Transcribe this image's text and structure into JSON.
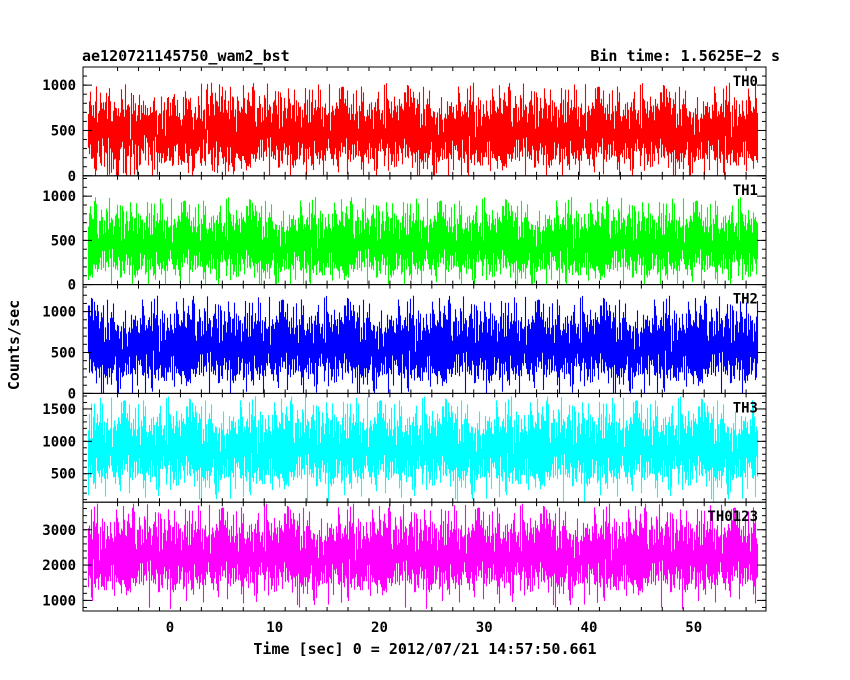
{
  "chart_data": {
    "type": "line",
    "title_left": "ae120721145750_wam2_bst",
    "title_right": "Bin time: 1.5625E−2 s",
    "xlabel": "Time [sec] 0 = 2012/07/21 14:57:50.661",
    "ylabel": "Counts/sec",
    "xlim": [
      -8.3,
      56.9
    ],
    "x_ticks": [
      0,
      10,
      20,
      30,
      40,
      50
    ],
    "x_tick_labels": [
      "0",
      "10",
      "20",
      "30",
      "40",
      "50"
    ],
    "data_x_range": [
      -7.8,
      56.0
    ],
    "bin_time": 0.015625,
    "panels": [
      {
        "name": "TH0",
        "color": "#ff0000",
        "ylim": [
          0,
          1200
        ],
        "y_ticks": [
          0,
          500,
          1000
        ],
        "y_tick_labels": [
          "0",
          "500",
          "1000"
        ],
        "y_minor_step": 100,
        "mean": 470,
        "spread": 175,
        "max": 1200,
        "min": 0
      },
      {
        "name": "TH1",
        "color": "#00ff00",
        "ylim": [
          0,
          1230
        ],
        "y_ticks": [
          0,
          500,
          1000
        ],
        "y_tick_labels": [
          "0",
          "500",
          "1000"
        ],
        "y_minor_step": 100,
        "mean": 450,
        "spread": 170,
        "max": 1150,
        "min": 0
      },
      {
        "name": "TH2",
        "color": "#0000ff",
        "ylim": [
          0,
          1330
        ],
        "y_ticks": [
          0,
          500,
          1000
        ],
        "y_tick_labels": [
          "0",
          "500",
          "1000"
        ],
        "y_minor_step": 100,
        "mean": 560,
        "spread": 200,
        "max": 1330,
        "min": 0
      },
      {
        "name": "TH3",
        "color": "#00ffff",
        "ylim": [
          60,
          1740
        ],
        "y_ticks": [
          500,
          1000,
          1500
        ],
        "y_tick_labels": [
          "500",
          "1000",
          "1500"
        ],
        "y_minor_step": 100,
        "mean": 870,
        "spread": 260,
        "max": 1740,
        "min": 60
      },
      {
        "name": "TH0123",
        "color": "#ff00ff",
        "ylim": [
          700,
          3780
        ],
        "y_ticks": [
          1000,
          2000,
          3000
        ],
        "y_tick_labels": [
          "1000",
          "2000",
          "3000"
        ],
        "y_minor_step": 200,
        "mean": 2250,
        "spread": 470,
        "max": 3780,
        "min": 700
      }
    ]
  }
}
